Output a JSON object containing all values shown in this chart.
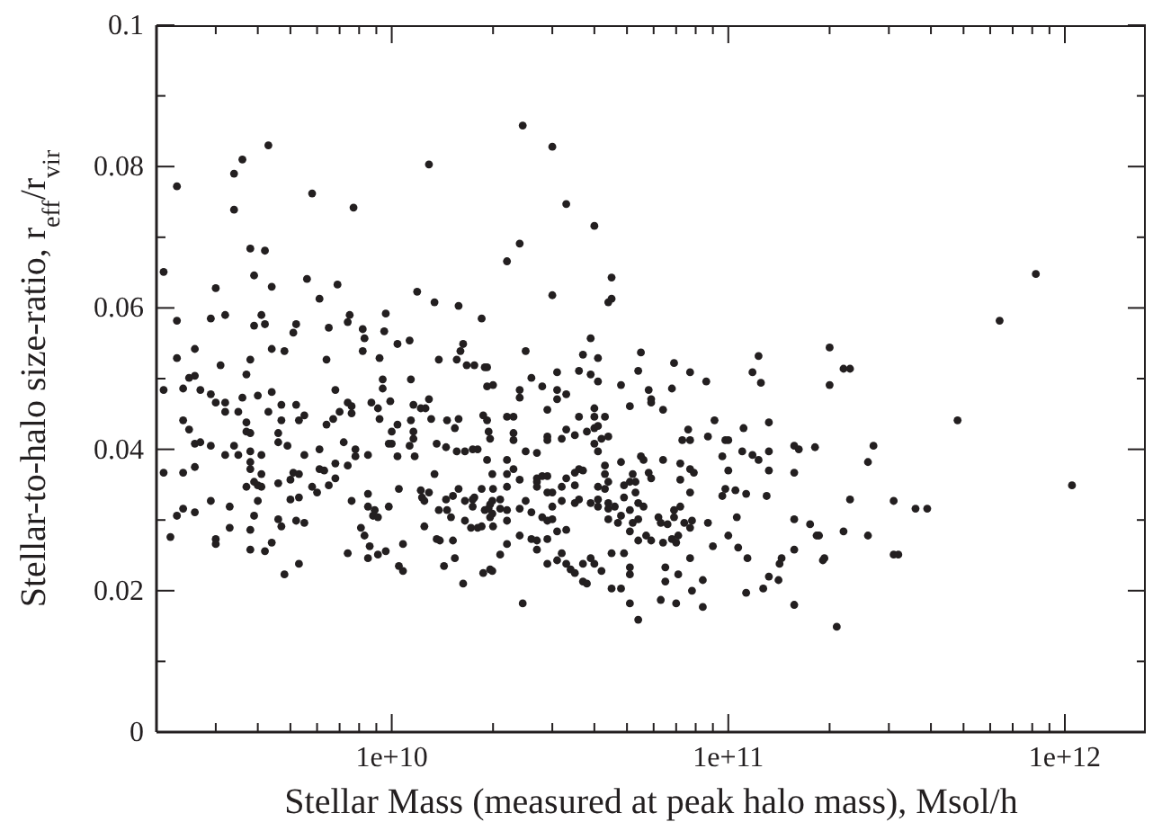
{
  "chart_data": {
    "type": "scatter",
    "xlabel": "Stellar Mass (measured at peak halo mass), Msol/h",
    "ylabel": "Stellar-to-halo size-ratio, r$_{eff}$/r$_{vir}$",
    "log": "x",
    "marker": "circle",
    "color": "#231f20",
    "xlim": [
      2000000000.0,
      1740000000000.0
    ],
    "ylim": [
      0,
      0.1
    ],
    "xticks": [
      {
        "value": 3000000000.0,
        "label": null
      },
      {
        "value": 4000000000.0,
        "label": null
      },
      {
        "value": 5000000000.0,
        "label": null
      },
      {
        "value": 6000000000.0,
        "label": null
      },
      {
        "value": 7000000000.0,
        "label": null
      },
      {
        "value": 8000000000.0,
        "label": null
      },
      {
        "value": 9000000000.0,
        "label": null
      },
      {
        "value": 10000000000.0,
        "label": "1e+10"
      },
      {
        "value": 20000000000.0,
        "label": null
      },
      {
        "value": 30000000000.0,
        "label": null
      },
      {
        "value": 40000000000.0,
        "label": null
      },
      {
        "value": 50000000000.0,
        "label": null
      },
      {
        "value": 60000000000.0,
        "label": null
      },
      {
        "value": 70000000000.0,
        "label": null
      },
      {
        "value": 80000000000.0,
        "label": null
      },
      {
        "value": 90000000000.0,
        "label": null
      },
      {
        "value": 100000000000.0,
        "label": "1e+11"
      },
      {
        "value": 200000000000.0,
        "label": null
      },
      {
        "value": 300000000000.0,
        "label": null
      },
      {
        "value": 400000000000.0,
        "label": null
      },
      {
        "value": 500000000000.0,
        "label": null
      },
      {
        "value": 600000000000.0,
        "label": null
      },
      {
        "value": 700000000000.0,
        "label": null
      },
      {
        "value": 800000000000.0,
        "label": null
      },
      {
        "value": 900000000000.0,
        "label": null
      },
      {
        "value": 1000000000000.0,
        "label": "1e+12"
      }
    ],
    "yticks": [
      0,
      {
        "value": 0.01,
        "label": null
      },
      0.02,
      {
        "value": 0.03,
        "label": null
      },
      0.04,
      {
        "value": 0.05,
        "label": null
      },
      0.06,
      {
        "value": 0.07,
        "label": null
      },
      0.08,
      {
        "value": 0.09,
        "label": null
      },
      0.1
    ],
    "x": [
      4300000000.0,
      3600000000.0,
      3400000000.0,
      3400000000.0,
      2300000000.0,
      5800000000.0,
      7700000000.0,
      12900000000.0,
      3800000000.0,
      4200000000.0,
      2100000000.0,
      3900000000.0,
      3000000000.0,
      4400000000.0,
      5600000000.0,
      6900000000.0,
      6100000000.0,
      11900000000.0,
      13400000000.0,
      15800000000.0,
      18500000000.0,
      2300000000.0,
      2900000000.0,
      3200000000.0,
      4100000000.0,
      3900000000.0,
      4200000000.0,
      5200000000.0,
      5100000000.0,
      6500000000.0,
      7400000000.0,
      7500000000.0,
      8200000000.0,
      9600000000.0,
      9500000000.0,
      8300000000.0,
      10400000000.0,
      11300000000.0,
      2600000000.0,
      2300000000.0,
      3100000000.0,
      3800000000.0,
      4400000000.0,
      4800000000.0,
      6400000000.0,
      8200000000.0,
      9200000000.0,
      13800000000.0,
      15600000000.0,
      16000000000.0,
      16300000000.0,
      16700000000.0,
      17600000000.0,
      18900000000.0,
      3700000000.0,
      24500000000.0,
      30000000000.0,
      33000000000.0,
      40000000000.0,
      24000000000.0,
      22000000000.0,
      45000000000.0,
      30000000000.0,
      45000000000.0,
      44000000000.0,
      39000000000.0,
      25000000000.0,
      37000000000.0,
      41000000000.0,
      55000000000.0,
      19200000000.0,
      31000000000.0,
      36000000000.0,
      39000000000.0,
      54000000000.0,
      69000000000.0,
      77000000000.0,
      118000000000.0,
      123000000000.0,
      820000000000.0,
      640000000000.0,
      200000000000.0,
      220000000000.0,
      230000000000.0,
      200000000000.0,
      480000000000.0,
      270000000000.0,
      260000000000.0,
      1050000000000.0,
      230000000000.0,
      310000000000.0,
      360000000000.0,
      390000000000.0,
      220000000000.0,
      260000000000.0,
      186000000000.0,
      310000000000.0,
      320000000000.0,
      191000000000.0,
      210000000000.0,
      2100000000.0,
      2400000000.0,
      2500000000.0,
      2600000000.0,
      2700000000.0,
      2900000000.0,
      3000000000.0,
      3200000000.0,
      3500000000.0,
      3600000000.0,
      4000000000.0,
      4400000000.0,
      2400000000.0,
      2500000000.0,
      2600000000.0,
      2700000000.0,
      2900000000.0,
      3200000000.0,
      3400000000.0,
      3700000000.0,
      3700000000.0,
      3800000000.0,
      4300000000.0,
      4700000000.0,
      4700000000.0,
      5200000000.0,
      5300000000.0,
      5500000000.0,
      3200000000.0,
      3500000000.0,
      3800000000.0,
      4100000000.0,
      2100000000.0,
      2400000000.0,
      2600000000.0,
      3800000000.0,
      3800000000.0,
      4600000000.0,
      4600000000.0,
      4900000000.0,
      4100000000.0,
      4000000000.0,
      3700000000.0,
      3900000000.0,
      4100000000.0,
      4600000000.0,
      5500000000.0,
      5100000000.0,
      5300000000.0,
      5000000000.0,
      5000000000.0,
      5300000000.0,
      5800000000.0,
      6000000000.0,
      4000000000.0,
      2900000000.0,
      2400000000.0,
      2300000000.0,
      2600000000.0,
      3300000000.0,
      3900000000.0,
      2200000000.0,
      3000000000.0,
      3000000000.0,
      3300000000.0,
      3800000000.0,
      4600000000.0,
      4700000000.0,
      5200000000.0,
      5500000000.0,
      4400000000.0,
      4200000000.0,
      3800000000.0,
      5300000000.0,
      4800000000.0,
      6100000000.0,
      6100000000.0,
      6300000000.0,
      6800000000.0,
      6400000000.0,
      6700000000.0,
      6800000000.0,
      7000000000.0,
      7400000000.0,
      7600000000.0,
      7600000000.0,
      7800000000.0,
      7800000000.0,
      8500000000.0,
      6800000000.0,
      7400000000.0,
      7200000000.0,
      6500000000.0,
      7600000000.0,
      8500000000.0,
      8500000000.0,
      8800000000.0,
      8700000000.0,
      9100000000.0,
      9200000000.0,
      9400000000.0,
      9400000000.0,
      9900000000.0,
      9800000000.0,
      10000000000.0,
      10000000000.0,
      10400000000.0,
      10400000000.0,
      10500000000.0,
      8100000000.0,
      8300000000.0,
      8600000000.0,
      8500000000.0,
      8900000000.0,
      9100000000.0,
      9800000000.0,
      9600000000.0,
      9100000000.0,
      7400000000.0,
      10800000000.0,
      10500000000.0,
      10800000000.0,
      11400000000.0,
      11400000000.0,
      11600000000.0,
      11600000000.0,
      11300000000.0,
      11700000000.0,
      11600000000.0,
      12200000000.0,
      12600000000.0,
      12900000000.0,
      13100000000.0,
      13400000000.0,
      12900000000.0,
      12200000000.0,
      12300000000.0,
      12500000000.0,
      12500000000.0,
      13600000000.0,
      13900000000.0,
      13800000000.0,
      14500000000.0,
      14600000000.0,
      15000000000.0,
      15200000000.0,
      15200000000.0,
      15400000000.0,
      14300000000.0,
      14600000000.0,
      15800000000.0,
      15400000000.0,
      13600000000.0,
      14500000000.0,
      15600000000.0,
      16500000000.0,
      17400000000.0,
      18000000000.0,
      15800000000.0,
      16500000000.0,
      17400000000.0,
      17400000000.0,
      16300000000.0,
      18700000000.0,
      19600000000.0,
      16500000000.0,
      17200000000.0,
      18000000000.0,
      18500000000.0,
      18900000000.0,
      19600000000.0,
      19600000000.0,
      18700000000.0,
      19200000000.0,
      19400000000.0,
      19600000000.0,
      19200000000.0,
      18500000000.0,
      17600000000.0,
      19200000000.0,
      20000000000.0,
      26000000000.0,
      41000000000.0,
      86000000000.0,
      125000000000.0,
      24000000000.0,
      24000000000.0,
      28000000000.0,
      31000000000.0,
      33000000000.0,
      31000000000.0,
      48000000000.0,
      51000000000.0,
      58000000000.0,
      59000000000.0,
      59000000000.0,
      64000000000.0,
      68000000000.0,
      29000000000.0,
      22000000000.0,
      23000000000.0,
      23000000000.0,
      23000000000.0,
      29000000000.0,
      29000000000.0,
      32000000000.0,
      33000000000.0,
      35000000000.0,
      36000000000.0,
      38000000000.0,
      40000000000.0,
      40000000000.0,
      40000000000.0,
      41000000000.0,
      43000000000.0,
      42000000000.0,
      40000000000.0,
      41000000000.0,
      44000000000.0,
      22000000000.0,
      25000000000.0,
      27000000000.0,
      19900000000.0,
      20000000000.0,
      22000000000.0,
      23000000000.0,
      24000000000.0,
      27000000000.0,
      28000000000.0,
      29000000000.0,
      33000000000.0,
      35000000000.0,
      36000000000.0,
      37000000000.0,
      43000000000.0,
      43000000000.0,
      44000000000.0,
      48000000000.0,
      49000000000.0,
      51000000000.0,
      52000000000.0,
      53000000000.0,
      55000000000.0,
      56000000000.0,
      58000000000.0,
      59000000000.0,
      64000000000.0,
      72000000000.0,
      72000000000.0,
      76000000000.0,
      77000000000.0,
      77000000000.0,
      79000000000.0,
      73000000000.0,
      87000000000.0,
      91000000000.0,
      96000000000.0,
      98000000000.0,
      100000000000.0,
      100000000000.0,
      111000000000.0,
      110000000000.0,
      118000000000.0,
      132000000000.0,
      132000000000.0,
      132000000000.0,
      123000000000.0,
      130000000000.0,
      157000000000.0,
      162000000000.0,
      181000000000.0,
      157000000000.0,
      22000000000.0,
      21000000000.0,
      19900000000.0,
      19400000000.0,
      21000000000.0,
      22000000000.0,
      19900000000.0,
      22000000000.0,
      20000000000.0,
      27000000000.0,
      27000000000.0,
      29000000000.0,
      30000000000.0,
      32000000000.0,
      35000000000.0,
      32000000000.0,
      30000000000.0,
      35000000000.0,
      36000000000.0,
      39000000000.0,
      41000000000.0,
      41000000000.0,
      41000000000.0,
      25000000000.0,
      24000000000.0,
      26000000000.0,
      28000000000.0,
      29000000000.0,
      30000000000.0,
      31000000000.0,
      29000000000.0,
      33000000000.0,
      24000000000.0,
      26000000000.0,
      27000000000.0,
      27000000000.0,
      22000000000.0,
      21000000000.0,
      19900000000.0,
      24500000000.0,
      43000000000.0,
      44000000000.0,
      44000000000.0,
      46000000000.0,
      48000000000.0,
      49000000000.0,
      51000000000.0,
      53000000000.0,
      54000000000.0,
      56000000000.0,
      44000000000.0,
      47000000000.0,
      52000000000.0,
      54000000000.0,
      57000000000.0,
      51000000000.0,
      54000000000.0,
      59000000000.0,
      62000000000.0,
      63000000000.0,
      66000000000.0,
      69000000000.0,
      69000000000.0,
      72000000000.0,
      74000000000.0,
      77000000000.0,
      71000000000.0,
      68000000000.0,
      64000000000.0,
      70000000000.0,
      32000000000.0,
      31000000000.0,
      29000000000.0,
      33000000000.0,
      34000000000.0,
      35000000000.0,
      37000000000.0,
      37000000000.0,
      39000000000.0,
      40000000000.0,
      42000000000.0,
      38000000000.0,
      45000000000.0,
      49000000000.0,
      51000000000.0,
      51000000000.0,
      45000000000.0,
      48000000000.0,
      51000000000.0,
      54000000000.0,
      63000000000.0,
      70000000000.0,
      65000000000.0,
      65000000000.0,
      71000000000.0,
      77000000000.0,
      78000000000.0,
      84000000000.0,
      84000000000.0,
      77000000000.0,
      78000000000.0,
      87000000000.0,
      90000000000.0,
      96000000000.0,
      98000000000.0,
      105000000000.0,
      106000000000.0,
      100000000000.0,
      107000000000.0,
      114000000000.0,
      113000000000.0,
      113000000000.0,
      127000000000.0,
      132000000000.0,
      141000000000.0,
      142000000000.0,
      144000000000.0,
      157000000000.0,
      157000000000.0,
      157000000000.0,
      175000000000.0,
      183000000000.0,
      193000000000.0
    ],
    "values": [
      0.083,
      0.081,
      0.079,
      0.0739,
      0.0772,
      0.0762,
      0.0742,
      0.0803,
      0.0684,
      0.0681,
      0.0651,
      0.0646,
      0.0628,
      0.063,
      0.0641,
      0.0633,
      0.0613,
      0.0623,
      0.0608,
      0.0603,
      0.0585,
      0.0582,
      0.0585,
      0.059,
      0.059,
      0.0575,
      0.0577,
      0.0577,
      0.0565,
      0.0572,
      0.058,
      0.059,
      0.057,
      0.0592,
      0.0567,
      0.0557,
      0.0549,
      0.0554,
      0.0542,
      0.0529,
      0.0519,
      0.0527,
      0.0542,
      0.0539,
      0.0527,
      0.0539,
      0.0529,
      0.0527,
      0.0527,
      0.0539,
      0.0549,
      0.0519,
      0.0519,
      0.0516,
      0.0506,
      0.0858,
      0.0828,
      0.0747,
      0.0716,
      0.0691,
      0.0666,
      0.0643,
      0.0618,
      0.0613,
      0.0608,
      0.0557,
      0.0539,
      0.0534,
      0.0529,
      0.0537,
      0.0516,
      0.0509,
      0.0511,
      0.0506,
      0.0511,
      0.0522,
      0.0509,
      0.0509,
      0.0532,
      0.0648,
      0.0582,
      0.0544,
      0.0514,
      0.0514,
      0.0491,
      0.0441,
      0.0405,
      0.0382,
      0.0349,
      0.0329,
      0.0327,
      0.0316,
      0.0316,
      0.0284,
      0.0278,
      0.0278,
      0.0251,
      0.0251,
      0.0243,
      0.0149,
      0.0484,
      0.0486,
      0.0501,
      0.0504,
      0.0484,
      0.0478,
      0.0466,
      0.0466,
      0.0453,
      0.0473,
      0.0476,
      0.0481,
      0.0441,
      0.0428,
      0.0408,
      0.041,
      0.0405,
      0.0453,
      0.0405,
      0.0438,
      0.0425,
      0.0423,
      0.0453,
      0.0463,
      0.0441,
      0.0463,
      0.0441,
      0.0448,
      0.0392,
      0.0392,
      0.0397,
      0.0392,
      0.0367,
      0.0367,
      0.0375,
      0.0382,
      0.0372,
      0.0423,
      0.041,
      0.0405,
      0.0365,
      0.0349,
      0.0347,
      0.0354,
      0.0347,
      0.0352,
      0.0392,
      0.0367,
      0.0365,
      0.0357,
      0.0329,
      0.0332,
      0.0347,
      0.0339,
      0.0327,
      0.0327,
      0.0316,
      0.0306,
      0.0311,
      0.0319,
      0.0306,
      0.0276,
      0.0273,
      0.0266,
      0.0289,
      0.0286,
      0.0301,
      0.0291,
      0.0299,
      0.0296,
      0.0268,
      0.0256,
      0.0258,
      0.0238,
      0.0223,
      0.04,
      0.0372,
      0.037,
      0.0359,
      0.0435,
      0.0443,
      0.0484,
      0.0453,
      0.0466,
      0.0461,
      0.0451,
      0.04,
      0.039,
      0.0392,
      0.038,
      0.0377,
      0.041,
      0.0349,
      0.0327,
      0.0337,
      0.0319,
      0.0306,
      0.0466,
      0.0458,
      0.0443,
      0.0499,
      0.0486,
      0.0468,
      0.0408,
      0.0408,
      0.0425,
      0.0435,
      0.039,
      0.0344,
      0.0289,
      0.0278,
      0.0263,
      0.0246,
      0.0314,
      0.0304,
      0.0319,
      0.0256,
      0.0251,
      0.0253,
      0.0266,
      0.0235,
      0.0228,
      0.0499,
      0.0441,
      0.0425,
      0.0415,
      0.0405,
      0.039,
      0.0463,
      0.0458,
      0.0458,
      0.0471,
      0.0443,
      0.0365,
      0.0339,
      0.0342,
      0.0332,
      0.0327,
      0.0291,
      0.0273,
      0.0271,
      0.0314,
      0.0329,
      0.0314,
      0.0304,
      0.0334,
      0.0271,
      0.0246,
      0.0235,
      0.0441,
      0.0443,
      0.043,
      0.0408,
      0.0403,
      0.0397,
      0.0397,
      0.04,
      0.04,
      0.0344,
      0.0327,
      0.0329,
      0.0319,
      0.021,
      0.0225,
      0.023,
      0.0299,
      0.0289,
      0.0289,
      0.0291,
      0.0314,
      0.0322,
      0.0304,
      0.0448,
      0.0441,
      0.0425,
      0.0415,
      0.0385,
      0.0344,
      0.0332,
      0.0489,
      0.0491,
      0.0501,
      0.0496,
      0.0496,
      0.0494,
      0.0484,
      0.0473,
      0.0489,
      0.0484,
      0.0478,
      0.0471,
      0.0491,
      0.0461,
      0.0484,
      0.0471,
      0.0466,
      0.0456,
      0.0486,
      0.0456,
      0.0446,
      0.0446,
      0.0423,
      0.0413,
      0.0418,
      0.0413,
      0.0415,
      0.0428,
      0.042,
      0.0446,
      0.0425,
      0.0446,
      0.043,
      0.0458,
      0.0433,
      0.0446,
      0.0415,
      0.0408,
      0.0397,
      0.0418,
      0.0385,
      0.0397,
      0.0395,
      0.0365,
      0.0344,
      0.0365,
      0.0372,
      0.0357,
      0.0359,
      0.0362,
      0.0362,
      0.0359,
      0.0367,
      0.0372,
      0.037,
      0.0377,
      0.0365,
      0.0354,
      0.0382,
      0.0349,
      0.0354,
      0.0365,
      0.0354,
      0.039,
      0.0385,
      0.0367,
      0.0359,
      0.0385,
      0.038,
      0.0357,
      0.0428,
      0.0413,
      0.0372,
      0.0367,
      0.0413,
      0.0418,
      0.0441,
      0.039,
      0.0413,
      0.0413,
      0.037,
      0.043,
      0.0397,
      0.0392,
      0.0438,
      0.0397,
      0.037,
      0.0385,
      0.0334,
      0.0405,
      0.04,
      0.0403,
      0.0367,
      0.0347,
      0.0329,
      0.0327,
      0.0316,
      0.0316,
      0.0314,
      0.0309,
      0.0299,
      0.0291,
      0.0354,
      0.0347,
      0.0339,
      0.0339,
      0.0347,
      0.0349,
      0.0327,
      0.0319,
      0.0324,
      0.0329,
      0.0324,
      0.0347,
      0.0329,
      0.0319,
      0.0327,
      0.0316,
      0.0311,
      0.0304,
      0.0299,
      0.0301,
      0.0284,
      0.0273,
      0.0286,
      0.0278,
      0.0273,
      0.0271,
      0.0258,
      0.0266,
      0.0251,
      0.0228,
      0.0182,
      0.0344,
      0.0324,
      0.0316,
      0.0319,
      0.0306,
      0.0332,
      0.0314,
      0.0339,
      0.0324,
      0.0319,
      0.0301,
      0.0296,
      0.0296,
      0.0301,
      0.0278,
      0.0284,
      0.0271,
      0.0271,
      0.0304,
      0.0296,
      0.0294,
      0.0304,
      0.0314,
      0.0319,
      0.0296,
      0.0289,
      0.0278,
      0.0273,
      0.0268,
      0.0268,
      0.0253,
      0.0243,
      0.0238,
      0.0238,
      0.023,
      0.0225,
      0.0238,
      0.0213,
      0.0246,
      0.0238,
      0.0228,
      0.021,
      0.0253,
      0.0253,
      0.0233,
      0.0223,
      0.0203,
      0.0203,
      0.0182,
      0.0159,
      0.0187,
      0.0182,
      0.0213,
      0.0233,
      0.0223,
      0.0246,
      0.02,
      0.0215,
      0.0177,
      0.0339,
      0.0299,
      0.0296,
      0.0263,
      0.0334,
      0.0344,
      0.0342,
      0.0304,
      0.0278,
      0.0261,
      0.0246,
      0.0337,
      0.0197,
      0.0203,
      0.022,
      0.0215,
      0.0238,
      0.0246,
      0.0301,
      0.0258,
      0.018,
      0.0294,
      0.0278,
      0.0246
    ]
  }
}
